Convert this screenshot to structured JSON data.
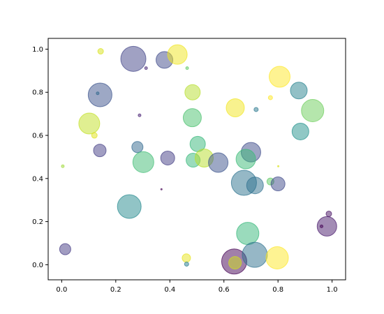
{
  "chart_data": {
    "type": "scatter",
    "title": "",
    "xlabel": "",
    "ylabel": "",
    "xlim": [
      -0.05,
      1.05
    ],
    "ylim": [
      -0.07,
      1.05
    ],
    "xticks": [
      "0.0",
      "0.2",
      "0.4",
      "0.6",
      "0.8",
      "1.0"
    ],
    "yticks": [
      "0.0",
      "0.2",
      "0.4",
      "0.6",
      "0.8",
      "1.0"
    ],
    "grid": false,
    "legend": "none",
    "alpha": 0.5,
    "colormap": "viridis",
    "points": [
      {
        "x": 0.265,
        "y": 0.955,
        "size": 18,
        "color": "#414487"
      },
      {
        "x": 0.38,
        "y": 0.95,
        "size": 12,
        "color": "#3f4a8a"
      },
      {
        "x": 0.428,
        "y": 0.975,
        "size": 14,
        "color": "#f0e51d"
      },
      {
        "x": 0.144,
        "y": 0.99,
        "size": 4,
        "color": "#d8e219"
      },
      {
        "x": 0.312,
        "y": 0.912,
        "size": 2,
        "color": "#482878"
      },
      {
        "x": 0.464,
        "y": 0.912,
        "size": 2,
        "color": "#5ec962"
      },
      {
        "x": 0.806,
        "y": 0.872,
        "size": 15,
        "color": "#fde725"
      },
      {
        "x": 0.877,
        "y": 0.808,
        "size": 12,
        "color": "#26828e"
      },
      {
        "x": 0.142,
        "y": 0.788,
        "size": 17,
        "color": "#3b528b"
      },
      {
        "x": 0.133,
        "y": 0.795,
        "size": 2,
        "color": "#31688e"
      },
      {
        "x": 0.484,
        "y": 0.8,
        "size": 11,
        "color": "#b5de2b"
      },
      {
        "x": 0.928,
        "y": 0.715,
        "size": 16,
        "color": "#6ccd5a"
      },
      {
        "x": 0.642,
        "y": 0.728,
        "size": 13,
        "color": "#f1e51d"
      },
      {
        "x": 0.719,
        "y": 0.72,
        "size": 3,
        "color": "#2a788e"
      },
      {
        "x": 0.772,
        "y": 0.775,
        "size": 3,
        "color": "#fde725"
      },
      {
        "x": 0.288,
        "y": 0.693,
        "size": 2,
        "color": "#482173"
      },
      {
        "x": 0.483,
        "y": 0.682,
        "size": 13,
        "color": "#4ac16d"
      },
      {
        "x": 0.102,
        "y": 0.655,
        "size": 15,
        "color": "#c2df23"
      },
      {
        "x": 0.121,
        "y": 0.6,
        "size": 4,
        "color": "#dfe318"
      },
      {
        "x": 0.883,
        "y": 0.618,
        "size": 12,
        "color": "#21918c"
      },
      {
        "x": 0.141,
        "y": 0.53,
        "size": 9,
        "color": "#433e85"
      },
      {
        "x": 0.28,
        "y": 0.546,
        "size": 8,
        "color": "#31688e"
      },
      {
        "x": 0.503,
        "y": 0.56,
        "size": 11,
        "color": "#35b779"
      },
      {
        "x": 0.302,
        "y": 0.476,
        "size": 15,
        "color": "#3fbc73"
      },
      {
        "x": 0.392,
        "y": 0.495,
        "size": 10,
        "color": "#433e85"
      },
      {
        "x": 0.486,
        "y": 0.485,
        "size": 10,
        "color": "#35b779"
      },
      {
        "x": 0.527,
        "y": 0.495,
        "size": 13,
        "color": "#b8de29"
      },
      {
        "x": 0.579,
        "y": 0.474,
        "size": 14,
        "color": "#3b528b"
      },
      {
        "x": 0.7,
        "y": 0.522,
        "size": 14,
        "color": "#3e4c8a"
      },
      {
        "x": 0.681,
        "y": 0.49,
        "size": 14,
        "color": "#3aba76"
      },
      {
        "x": 0.674,
        "y": 0.38,
        "size": 18,
        "color": "#2c728e"
      },
      {
        "x": 0.715,
        "y": 0.368,
        "size": 12,
        "color": "#2e6f8e"
      },
      {
        "x": 0.772,
        "y": 0.386,
        "size": 5,
        "color": "#5ec962"
      },
      {
        "x": 0.8,
        "y": 0.375,
        "size": 10,
        "color": "#3e4989"
      },
      {
        "x": 0.801,
        "y": 0.457,
        "size": 1,
        "color": "#d8e219"
      },
      {
        "x": 0.004,
        "y": 0.457,
        "size": 2,
        "color": "#a0da39"
      },
      {
        "x": 0.369,
        "y": 0.35,
        "size": 1,
        "color": "#440154"
      },
      {
        "x": 0.25,
        "y": 0.27,
        "size": 17,
        "color": "#23898e"
      },
      {
        "x": 0.688,
        "y": 0.145,
        "size": 16,
        "color": "#35b779"
      },
      {
        "x": 0.981,
        "y": 0.178,
        "size": 14,
        "color": "#481a6c"
      },
      {
        "x": 0.988,
        "y": 0.236,
        "size": 4,
        "color": "#471164"
      },
      {
        "x": 0.961,
        "y": 0.178,
        "size": 2,
        "color": "#440154"
      },
      {
        "x": 0.013,
        "y": 0.072,
        "size": 8,
        "color": "#443a83"
      },
      {
        "x": 0.461,
        "y": 0.031,
        "size": 6,
        "color": "#e7e419"
      },
      {
        "x": 0.462,
        "y": 0.003,
        "size": 3,
        "color": "#287c8e"
      },
      {
        "x": 0.638,
        "y": 0.015,
        "size": 18,
        "color": "#440154"
      },
      {
        "x": 0.641,
        "y": 0.009,
        "size": 9,
        "color": "#d0e11c"
      },
      {
        "x": 0.714,
        "y": 0.046,
        "size": 18,
        "color": "#2d708e"
      },
      {
        "x": 0.797,
        "y": 0.032,
        "size": 16,
        "color": "#fde725"
      }
    ]
  }
}
